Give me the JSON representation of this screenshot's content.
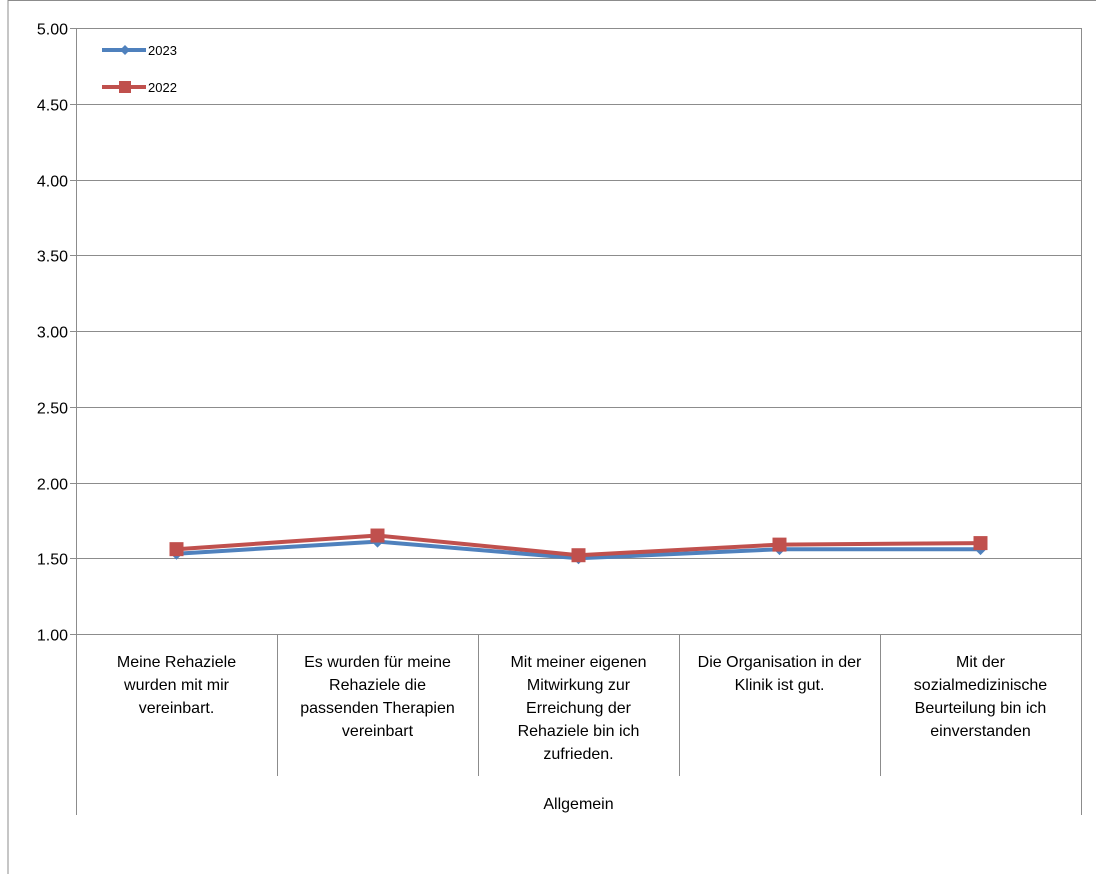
{
  "chart_data": {
    "type": "line",
    "y_ticks": [
      "5.00",
      "4.50",
      "4.00",
      "3.50",
      "3.00",
      "2.50",
      "2.00",
      "1.50",
      "1.00"
    ],
    "ylim": [
      1.0,
      5.0
    ],
    "y_step": 0.5,
    "grid": true,
    "legend_position": "top-left",
    "categories": [
      [
        "Meine Rehaziele",
        "wurden mit mir",
        "vereinbart."
      ],
      [
        "Es wurden für meine",
        "Rehaziele die",
        "passenden Therapien",
        "vereinbart"
      ],
      [
        "Mit meiner eigenen",
        "Mitwirkung zur",
        "Erreichung der",
        "Rehaziele bin ich",
        "zufrieden."
      ],
      [
        "Die Organisation in der",
        "Klinik ist gut."
      ],
      [
        "Mit der",
        "sozialmedizinische",
        "Beurteilung bin ich",
        "einverstanden"
      ]
    ],
    "group_label": "Allgemein",
    "series": [
      {
        "name": "2023",
        "color": "#4f81bd",
        "marker": "diamond",
        "values": [
          1.53,
          1.61,
          1.5,
          1.56,
          1.56
        ]
      },
      {
        "name": "2022",
        "color": "#c0504d",
        "marker": "square",
        "values": [
          1.56,
          1.65,
          1.52,
          1.59,
          1.6
        ]
      }
    ]
  }
}
